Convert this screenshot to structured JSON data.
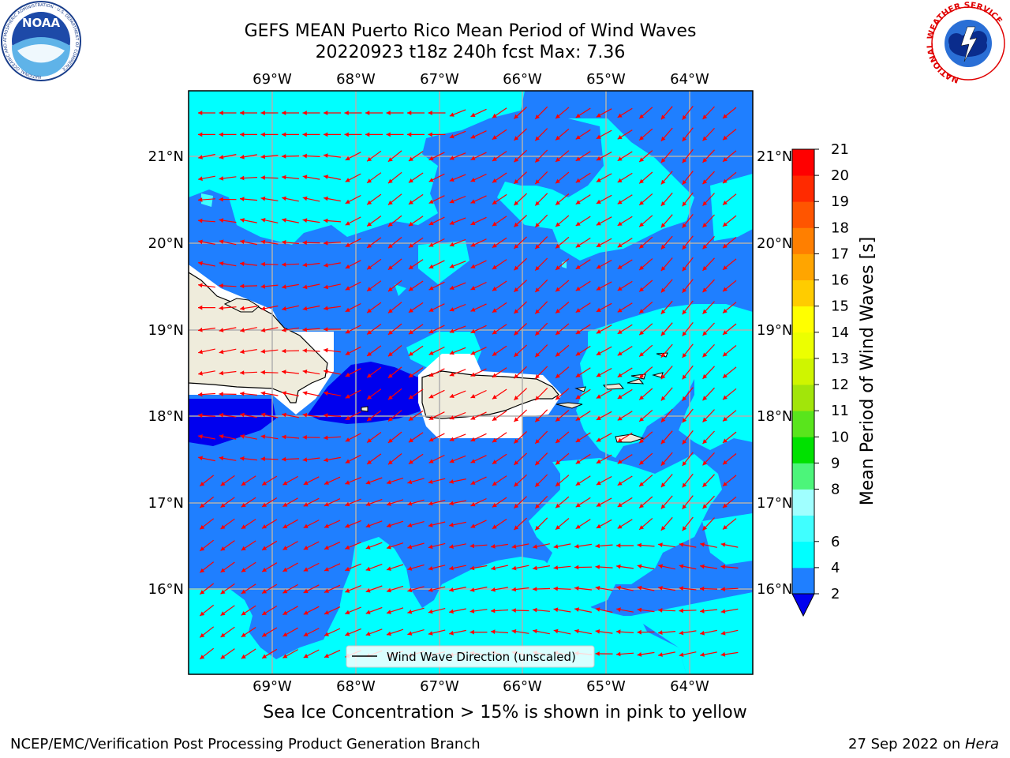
{
  "title_line1": "GEFS MEAN Puerto Rico Mean Period of Wind Waves",
  "title_line2": "20220923 t18z 240h fcst   Max: 7.36",
  "map": {
    "lon_range": [
      -70,
      -63.25
    ],
    "lat_range": [
      15,
      21.75
    ],
    "lon_ticks": [
      "69°W",
      "68°W",
      "67°W",
      "66°W",
      "65°W",
      "64°W"
    ],
    "lat_ticks": [
      "21°N",
      "20°N",
      "19°N",
      "18°N",
      "17°N",
      "16°N"
    ],
    "gridlines": true,
    "land_color": "#efecdc",
    "arrow_color": "#ff0000"
  },
  "legend": {
    "label": "Wind Wave Direction (unscaled)",
    "placement": "bottom-center"
  },
  "colorbar": {
    "label": "Mean Period of Wind Waves [s]",
    "levels": [
      2,
      4,
      6,
      7,
      8,
      9,
      10,
      11,
      12,
      13,
      14,
      15,
      16,
      17,
      18,
      19,
      20,
      21
    ],
    "tick_labels": [
      "2",
      "4",
      "6",
      "8",
      "9",
      "10",
      "11",
      "12",
      "13",
      "14",
      "15",
      "16",
      "17",
      "18",
      "19",
      "20",
      "21"
    ],
    "colors": [
      "#1f7fff",
      "#00ffff",
      "#40ffff",
      "#a0ffff",
      "#4cf57a",
      "#00e100",
      "#59e51c",
      "#a2e50a",
      "#cff500",
      "#ecff00",
      "#ffff00",
      "#ffcc00",
      "#ffa500",
      "#ff7f00",
      "#ff5500",
      "#ff2a00",
      "#ff0000"
    ],
    "under_color": "#0000ee"
  },
  "ice_note": "Sea Ice Concentration > 15% is shown in pink to yellow",
  "credit": "NCEP/EMC/Verification Post Processing Product Generation Branch",
  "date_text": "27 Sep 2022 on ",
  "date_host": "Hera",
  "logos": {
    "left": "NOAA",
    "left_ring": "NATIONAL OCEANIC AND ATMOSPHERIC ADMINISTRATION · U.S. DEPARTMENT OF COMMERCE",
    "right_ring": "NATIONAL WEATHER SERVICE"
  }
}
